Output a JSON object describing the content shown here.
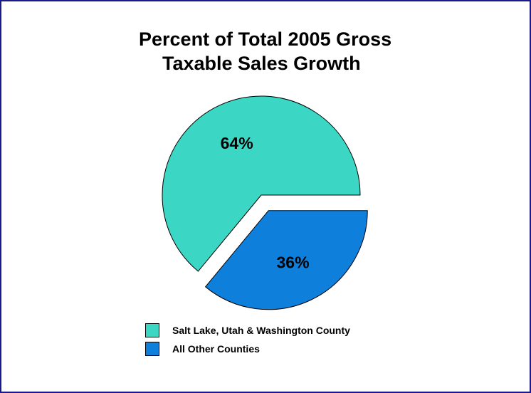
{
  "chart_data": {
    "type": "pie",
    "title_lines": [
      "Percent of Total 2005 Gross",
      "Taxable Sales Growth"
    ],
    "slices": [
      {
        "label": "Salt Lake, Utah & Washington County",
        "value": 64,
        "value_label": "64%",
        "color": "#3cd6c4",
        "exploded": false
      },
      {
        "label": "All Other Counties",
        "value": 36,
        "value_label": "36%",
        "color": "#0f7fdc",
        "exploded": true
      }
    ],
    "legend": [
      "Salt Lake, Utah & Washington County",
      "All Other Counties"
    ],
    "legend_position": "bottom"
  },
  "colors": {
    "border": "#1a1a8c",
    "slice_outline": "#000000"
  }
}
